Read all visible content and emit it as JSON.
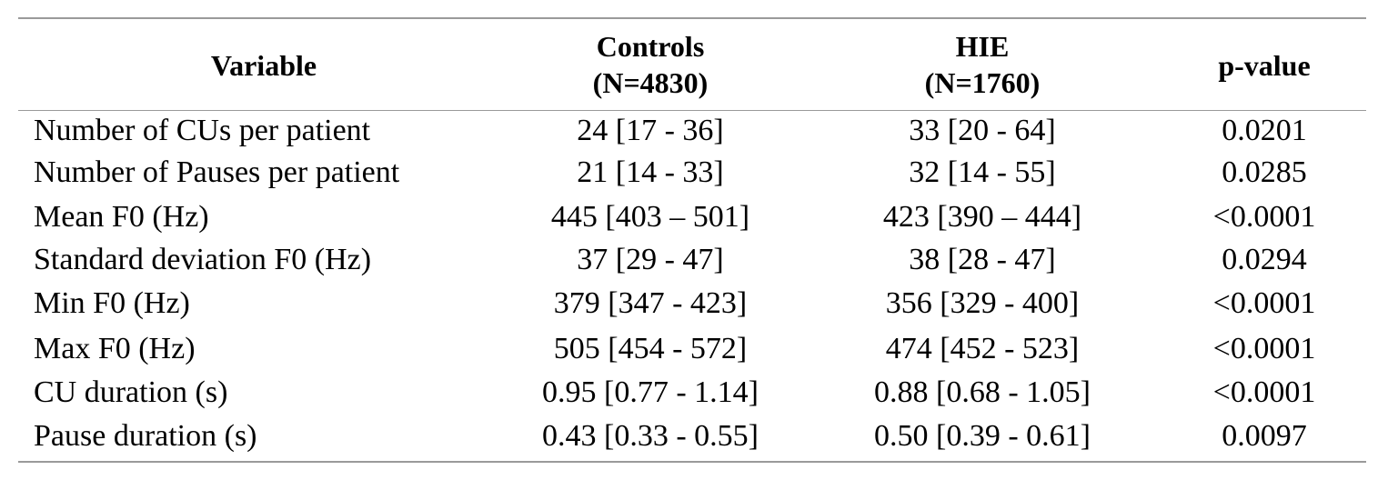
{
  "table": {
    "headers": {
      "variable": "Variable",
      "controls_line1": "Controls",
      "controls_line2": "(N=4830)",
      "hie_line1": "HIE",
      "hie_line2": "(N=1760)",
      "pvalue": "p-value"
    },
    "rows": [
      {
        "variable": "Number of CUs per patient",
        "controls": "24 [17 - 36]",
        "hie": "33 [20 - 64]",
        "p": "0.0201"
      },
      {
        "variable": "Number of Pauses per patient",
        "controls": "21 [14 - 33]",
        "hie": "32 [14 - 55]",
        "p": "0.0285"
      },
      {
        "variable": "Mean F0 (Hz)",
        "controls": "445 [403 – 501]",
        "hie": "423 [390 – 444]",
        "p": "<0.0001"
      },
      {
        "variable": "Standard deviation F0 (Hz)",
        "controls": "37 [29 - 47]",
        "hie": "38 [28 - 47]",
        "p": "0.0294"
      },
      {
        "variable": "Min F0 (Hz)",
        "controls": "379 [347 - 423]",
        "hie": "356 [329 - 400]",
        "p": "<0.0001"
      },
      {
        "variable": "Max F0 (Hz)",
        "controls": "505 [454 - 572]",
        "hie": "474 [452 - 523]",
        "p": "<0.0001"
      },
      {
        "variable": "CU duration (s)",
        "controls": "0.95 [0.77 - 1.14]",
        "hie": "0.88 [0.68 - 1.05]",
        "p": "<0.0001"
      },
      {
        "variable": "Pause duration (s)",
        "controls": "0.43 [0.33 - 0.55]",
        "hie": "0.50 [0.39 - 0.61]",
        "p": "0.0097"
      }
    ]
  }
}
